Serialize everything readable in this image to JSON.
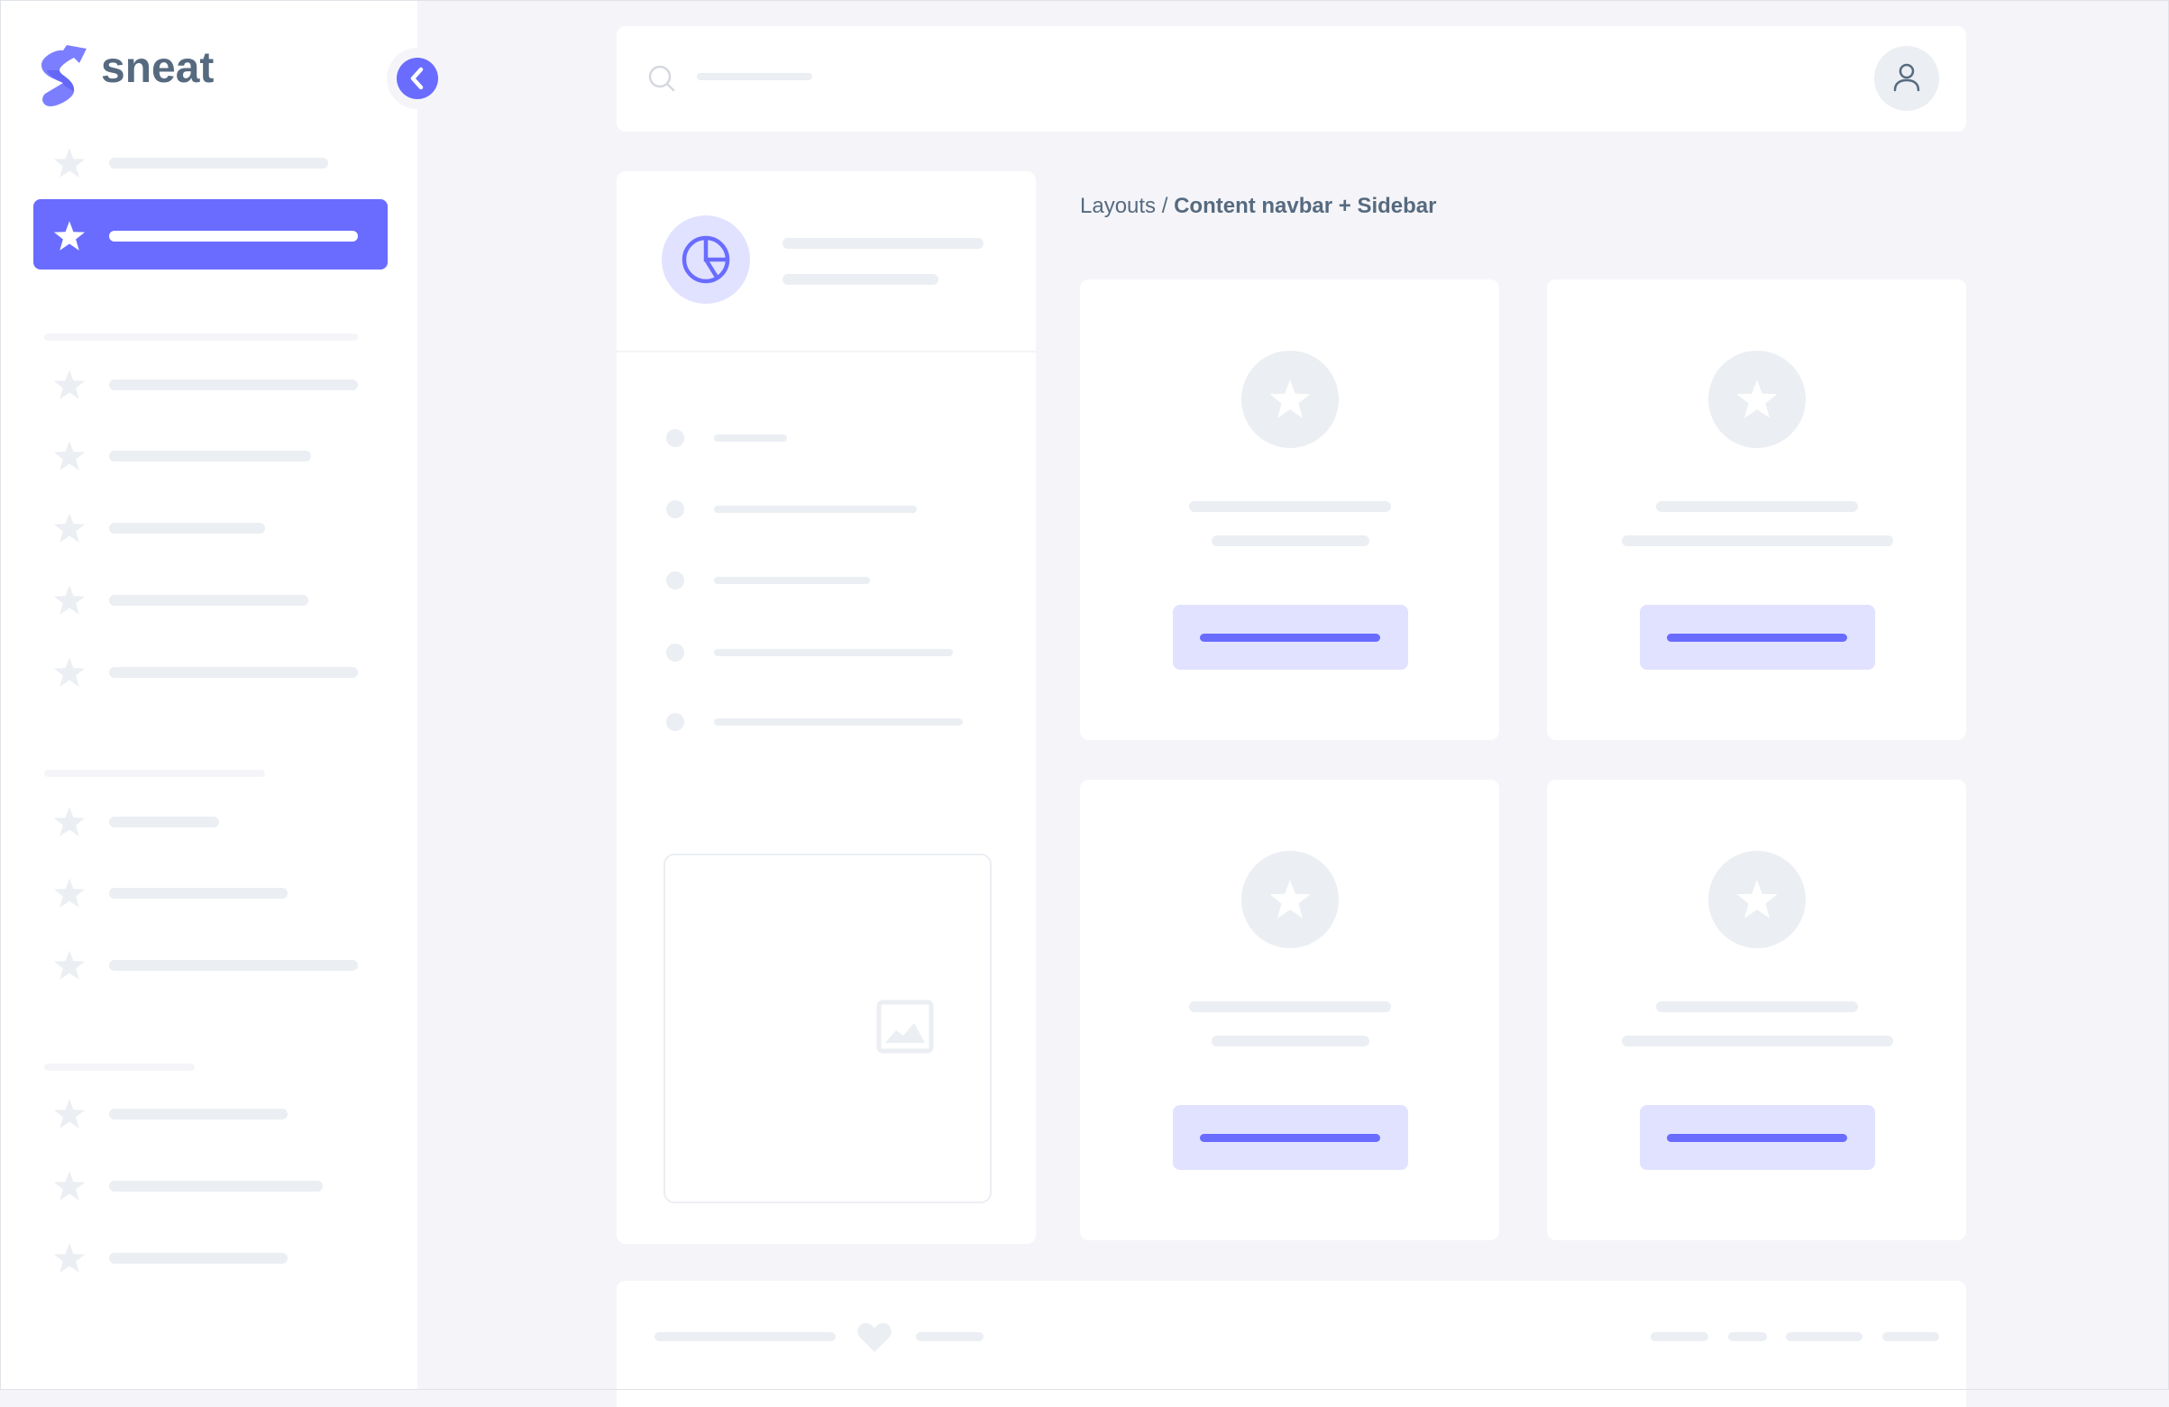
{
  "brand": {
    "name": "sneat",
    "accent": "#696cff",
    "text_color": "#566a7f"
  },
  "sidebar": {
    "toggle_icon": "chevron-left-icon",
    "item_icon": "star-icon",
    "active_index": 1
  },
  "navbar": {
    "search_icon": "search-icon",
    "avatar_icon": "user-icon"
  },
  "breadcrumb": {
    "parent": "Layouts",
    "separator": " / ",
    "current": "Content navbar + Sidebar"
  },
  "profile_card": {
    "icon": "pie-chart-icon",
    "image_icon": "image-icon"
  },
  "footer": {
    "icon": "heart-icon"
  }
}
